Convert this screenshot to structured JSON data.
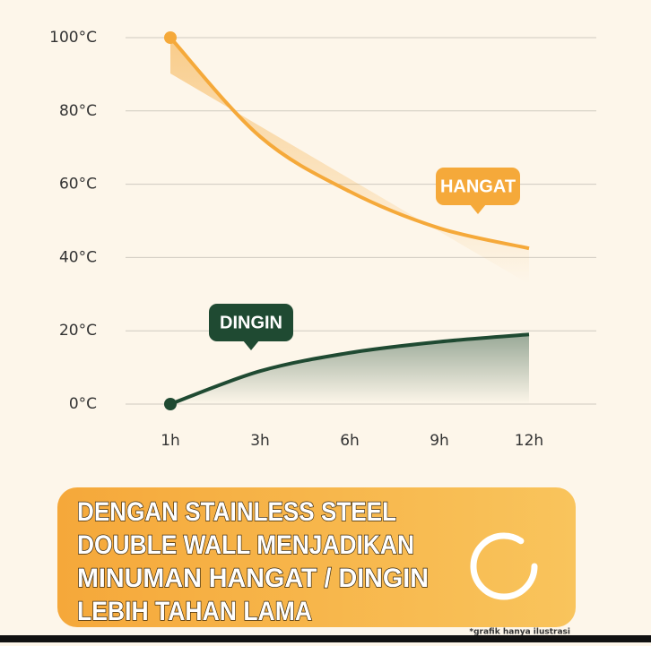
{
  "chart_data": {
    "type": "line",
    "categories": [
      "1h",
      "3h",
      "6h",
      "9h",
      "12h"
    ],
    "series": [
      {
        "name": "HANGAT",
        "color": "#f5a93a",
        "values": [
          100,
          73,
          58,
          48,
          42.5
        ]
      },
      {
        "name": "DINGIN",
        "color": "#1f4a32",
        "values": [
          0,
          9,
          14,
          17,
          19
        ]
      }
    ],
    "ylim": [
      0,
      100
    ],
    "yticks": [
      {
        "value": 0,
        "label": "0°C"
      },
      {
        "value": 20,
        "label": "20°C"
      },
      {
        "value": 40,
        "label": "40°C"
      },
      {
        "value": 60,
        "label": "60°C"
      },
      {
        "value": 80,
        "label": "80°C"
      },
      {
        "value": 100,
        "label": "100°C"
      }
    ],
    "grid": true,
    "banner": [
      "DENGAN STAINLESS STEEL",
      "DOUBLE WALL MENJADIKAN",
      "MINUMAN HANGAT / DINGIN",
      "LEBIH TAHAN LAMA"
    ],
    "note": "*grafik hanya ilustrasi"
  }
}
